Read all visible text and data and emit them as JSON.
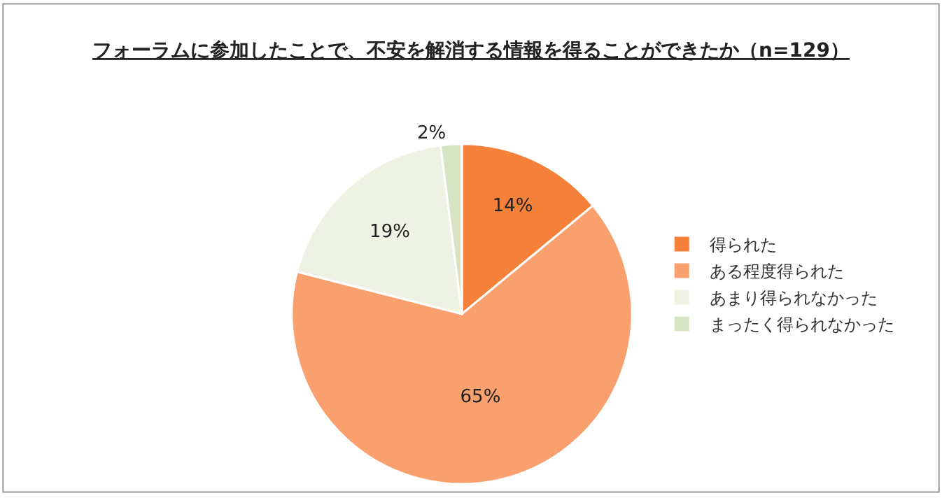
{
  "chart_data": {
    "type": "pie",
    "title": "フォーラムに参加したことで、不安を解消する情報を得ることができたか（n=129）",
    "categories": [
      "得られた",
      "ある程度得られた",
      "あまり得られなかった",
      "まったく得られなかった"
    ],
    "values": [
      14,
      65,
      19,
      2
    ],
    "colors": [
      "#f4803a",
      "#fa9f6e",
      "#eef2e2",
      "#d7e4c4"
    ],
    "value_labels": [
      "14%",
      "65%",
      "19%",
      "2%"
    ],
    "legend": "right"
  }
}
